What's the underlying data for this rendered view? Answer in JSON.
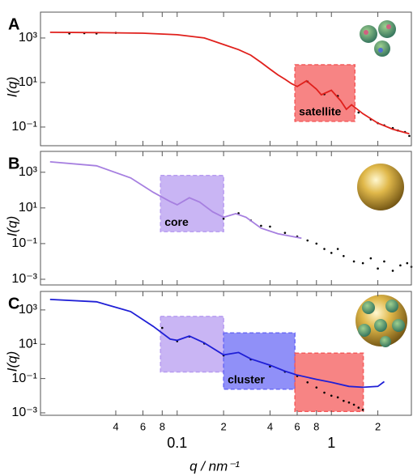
{
  "chart_data": [
    {
      "type": "line",
      "label": "A",
      "ylabel": "I(q)",
      "log_x": true,
      "log_y": true,
      "xlim": [
        0.013,
        3.3
      ],
      "ylim": [
        0.0145,
        14500
      ],
      "yticks": [
        {
          "value": 1000,
          "label": "10³"
        },
        {
          "value": 10,
          "label": "10¹"
        },
        {
          "value": 0.1,
          "label": "10⁻¹"
        }
      ],
      "series": [
        {
          "style": "dots",
          "color": "#000000",
          "x": [
            0.02,
            0.025,
            0.03,
            0.04,
            0.7,
            0.9,
            1.1,
            1.5,
            1.8,
            2.0,
            2.2,
            2.5,
            2.7,
            3.0,
            3.2
          ],
          "values": [
            1600,
            1650,
            1600,
            1700,
            11,
            3,
            2.5,
            0.45,
            0.22,
            0.15,
            0.12,
            0.09,
            0.07,
            0.06,
            0.04
          ]
        },
        {
          "style": "line",
          "color": "#e0201c",
          "x": [
            0.015,
            0.03,
            0.06,
            0.1,
            0.15,
            0.2,
            0.25,
            0.3,
            0.35,
            0.4,
            0.45,
            0.5,
            0.55,
            0.6,
            0.69,
            0.8,
            0.86,
            1.0,
            1.15,
            1.25,
            1.35,
            1.6,
            2.0,
            2.5,
            3.2
          ],
          "values": [
            1800,
            1750,
            1650,
            1400,
            1000,
            510,
            300,
            170,
            80,
            40,
            22,
            14,
            9,
            6.6,
            12,
            5,
            2.8,
            4.5,
            1.5,
            0.63,
            1.0,
            0.4,
            0.15,
            0.08,
            0.05
          ]
        }
      ],
      "annotations": [
        {
          "text": "satellite",
          "xrange": [
            0.58,
            1.42
          ],
          "yrange": [
            0.18,
            63
          ],
          "color": "#f45b5b"
        }
      ]
    },
    {
      "type": "line",
      "label": "B",
      "ylabel": "I(q)",
      "log_x": true,
      "log_y": true,
      "xlim": [
        0.013,
        3.3
      ],
      "ylim": [
        0.00048,
        14800
      ],
      "yticks": [
        {
          "value": 1000,
          "label": "10³"
        },
        {
          "value": 10,
          "label": "10¹"
        },
        {
          "value": 0.1,
          "label": "10⁻¹"
        },
        {
          "value": 0.001,
          "label": "10⁻³"
        }
      ],
      "series": [
        {
          "style": "dots",
          "color": "#000000",
          "x": [
            0.2,
            0.25,
            0.3,
            0.35,
            0.4,
            0.5,
            0.6,
            0.7,
            0.8,
            0.9,
            1.0,
            1.1,
            1.2,
            1.4,
            1.6,
            1.8,
            2.0,
            2.2,
            2.5,
            2.8,
            3.1,
            3.3
          ],
          "values": [
            2.5,
            5,
            2,
            1.0,
            0.9,
            0.4,
            0.25,
            0.15,
            0.1,
            0.05,
            0.03,
            0.05,
            0.02,
            0.01,
            0.008,
            0.015,
            0.004,
            0.01,
            0.003,
            0.006,
            0.008,
            0.005
          ]
        },
        {
          "style": "line",
          "color": "#a67fe0",
          "x": [
            0.015,
            0.03,
            0.05,
            0.07,
            0.09,
            0.1,
            0.12,
            0.14,
            0.17,
            0.2,
            0.24,
            0.28,
            0.35,
            0.45,
            0.64
          ],
          "values": [
            3850,
            2300,
            480,
            75,
            23,
            15,
            37,
            21,
            6,
            3,
            4.8,
            3,
            0.74,
            0.36,
            0.2
          ]
        }
      ],
      "annotations": [
        {
          "text": "core",
          "xrange": [
            0.078,
            0.2
          ],
          "yrange": [
            0.47,
            660
          ],
          "color": "#b79cf0"
        }
      ]
    },
    {
      "type": "line",
      "label": "C",
      "ylabel": "I(q)",
      "xlabel": "q / nm⁻¹",
      "log_x": true,
      "log_y": true,
      "xlim": [
        0.013,
        3.3
      ],
      "ylim": [
        0.00072,
        12000
      ],
      "xticks": [
        {
          "value": 0.04,
          "label": "4"
        },
        {
          "value": 0.06,
          "label": "6"
        },
        {
          "value": 0.08,
          "label": "8"
        },
        0.1,
        {
          "value": 0.2,
          "label": "2"
        },
        {
          "value": 0.4,
          "label": "4"
        },
        {
          "value": 0.6,
          "label": "6"
        },
        {
          "value": 0.8,
          "label": "8"
        },
        1,
        2
      ],
      "yticks": [
        {
          "value": 1000,
          "label": "10³"
        },
        {
          "value": 10,
          "label": "10¹"
        },
        {
          "value": 0.1,
          "label": "10⁻¹"
        },
        {
          "value": 0.001,
          "label": "10⁻³"
        }
      ],
      "series": [
        {
          "style": "dots",
          "color": "#000000",
          "x": [
            0.08,
            0.1,
            0.12,
            0.15,
            0.2,
            0.3,
            0.4,
            0.5,
            0.6,
            0.7,
            0.8,
            0.9,
            1.0,
            1.1,
            1.2,
            1.3,
            1.4,
            1.5,
            1.6
          ],
          "values": [
            90,
            15,
            28,
            11,
            2.2,
            1.3,
            0.5,
            0.25,
            0.14,
            0.06,
            0.03,
            0.015,
            0.01,
            0.008,
            0.005,
            0.004,
            0.003,
            0.002,
            0.0015
          ]
        },
        {
          "style": "line",
          "color": "#1f1fd6",
          "x": [
            0.015,
            0.03,
            0.05,
            0.07,
            0.09,
            0.1,
            0.12,
            0.15,
            0.2,
            0.25,
            0.3,
            0.4,
            0.5,
            0.6,
            0.8,
            1.0,
            1.3,
            1.6,
            2.0,
            2.2
          ],
          "values": [
            4100,
            3000,
            800,
            110,
            20,
            17,
            30,
            12,
            2.4,
            3.3,
            1.4,
            0.6,
            0.27,
            0.16,
            0.09,
            0.06,
            0.035,
            0.031,
            0.035,
            0.066
          ]
        }
      ],
      "annotations": [
        {
          "xrange": [
            0.078,
            0.2
          ],
          "yrange": [
            0.24,
            420
          ],
          "color": "#b79cf0"
        },
        {
          "text": "cluster",
          "xrange": [
            0.2,
            0.58
          ],
          "yrange": [
            0.024,
            46
          ],
          "color": "#6b6bf5"
        },
        {
          "xrange": [
            0.58,
            1.61
          ],
          "yrange": [
            0.0012,
            3.0
          ],
          "color": "#f45b5b"
        }
      ]
    }
  ]
}
